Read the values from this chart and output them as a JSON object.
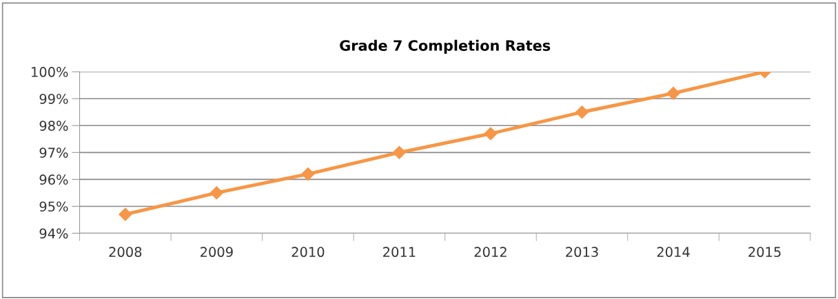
{
  "chart_data": {
    "type": "line",
    "title": "Grade 7 Completion Rates",
    "categories": [
      "2008",
      "2009",
      "2010",
      "2011",
      "2012",
      "2013",
      "2014",
      "2015"
    ],
    "series": [
      {
        "color": "#f79646",
        "values": [
          94.7,
          95.5,
          96.2,
          97.0,
          97.7,
          98.5,
          99.2,
          100.0
        ]
      }
    ],
    "ylim": [
      94,
      100
    ],
    "yticks": [
      {
        "value": 94,
        "label": "94%"
      },
      {
        "value": 95,
        "label": "95%"
      },
      {
        "value": 96,
        "label": "96%"
      },
      {
        "value": 97,
        "label": "97%"
      },
      {
        "value": 98,
        "label": "98%"
      },
      {
        "value": 99,
        "label": "99%"
      },
      {
        "value": 100,
        "label": "100%"
      }
    ],
    "grid": "y",
    "marker": "diamond",
    "line_style": "solid",
    "legend": false
  }
}
